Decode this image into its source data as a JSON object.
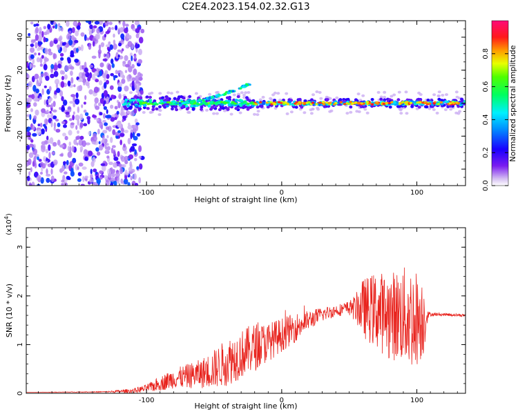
{
  "figure": {
    "title": "C2E4.2023.154.02.32.G13"
  },
  "chart_data": [
    {
      "type": "heatmap",
      "title": "C2E4.2023.154.02.32.G13",
      "xlabel": "Height of straight line (km)",
      "ylabel": "Frequency (Hz)",
      "xlim": [
        -189,
        136
      ],
      "ylim": [
        -50,
        50
      ],
      "xticks": [
        -100,
        0,
        100
      ],
      "xtick_labels": [
        "-100",
        "0",
        "100"
      ],
      "yticks": [
        -40,
        -20,
        0,
        20,
        40
      ],
      "ytick_labels": [
        "-40",
        "-20",
        "0",
        "20",
        "40"
      ],
      "grid": false,
      "colorbar": {
        "label": "Normalized spectral amplitude",
        "range": [
          0,
          1
        ],
        "ticks": [
          0.0,
          0.2,
          0.4,
          0.6,
          0.8
        ],
        "tick_labels": [
          "0.0",
          "0.2",
          "0.4",
          "0.6",
          "0.8"
        ],
        "colormap": "rainbow (violet → blue → cyan → green → yellow → red → magenta)",
        "colors": [
          "#ffffff",
          "#9a6be0",
          "#6a00ff",
          "#0000ff",
          "#00e5ff",
          "#00ff40",
          "#e5ff00",
          "#ff2020",
          "#ff1070"
        ]
      },
      "features": [
        {
          "name": "noise scatter",
          "x_range": [
            -189,
            -103
          ],
          "y_range": [
            -50,
            50
          ],
          "amplitude": [
            0.05,
            0.3
          ]
        },
        {
          "name": "main doppler line",
          "x_range": [
            -118,
            136
          ],
          "y_center": 0,
          "amplitude": [
            0.4,
            0.95
          ]
        },
        {
          "name": "rising arc",
          "x_range": [
            -80,
            -23
          ],
          "y_range": [
            0,
            12
          ],
          "amplitude": [
            0.3,
            0.6
          ]
        }
      ]
    },
    {
      "type": "line",
      "xlabel": "Height of straight line (km)",
      "ylabel": "SNR (10 * v/v)",
      "y_multiplier_label": "(x10",
      "y_multiplier_exp": "4",
      "y_multiplier_close": ")",
      "xlim": [
        -189,
        136
      ],
      "ylim": [
        0,
        3.4
      ],
      "xticks": [
        -100,
        0,
        100
      ],
      "xtick_labels": [
        "-100",
        "0",
        "100"
      ],
      "yticks": [
        0,
        1,
        2,
        3
      ],
      "ytick_labels": [
        "0",
        "1",
        "2",
        "3"
      ],
      "grid": false,
      "series": [
        {
          "color": "#e8221c",
          "x": [
            -189,
            -130,
            -110,
            -100,
            -90,
            -80,
            -70,
            -60,
            -50,
            -40,
            -30,
            -20,
            -10,
            0,
            10,
            20,
            30,
            40,
            50,
            55,
            60,
            70,
            80,
            90,
            95,
            100,
            105,
            108,
            110,
            120,
            136
          ],
          "y": [
            0.02,
            0.03,
            0.05,
            0.1,
            0.2,
            0.3,
            0.35,
            0.4,
            0.5,
            0.65,
            0.8,
            0.95,
            1.05,
            1.2,
            1.35,
            1.5,
            1.62,
            1.7,
            1.75,
            1.75,
            1.75,
            1.7,
            1.6,
            1.6,
            1.55,
            1.55,
            1.55,
            1.6,
            1.62,
            1.62,
            1.6
          ],
          "noise_amp": [
            0,
            0.01,
            0.05,
            0.08,
            0.15,
            0.2,
            0.25,
            0.3,
            0.4,
            0.5,
            0.5,
            0.5,
            0.4,
            0.35,
            0.3,
            0.2,
            0.15,
            0.12,
            0.15,
            0.3,
            0.6,
            0.8,
            0.9,
            1.0,
            1.1,
            1.0,
            0.8,
            0.1,
            0.04,
            0.03,
            0.03
          ]
        }
      ]
    }
  ]
}
